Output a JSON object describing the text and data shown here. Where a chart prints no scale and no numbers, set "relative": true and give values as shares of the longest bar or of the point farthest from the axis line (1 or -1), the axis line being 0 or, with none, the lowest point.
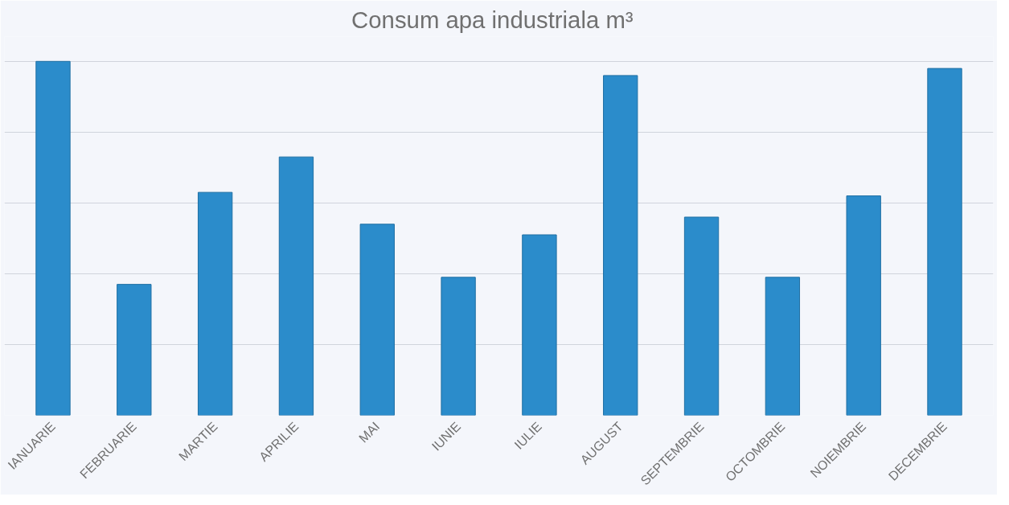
{
  "chart_data": {
    "type": "bar",
    "title": "Consum apa industriala   m³",
    "relative": true,
    "grid": "y",
    "categories": [
      "IANUARIE",
      "FEBRUARIE",
      "MARTIE",
      "APRILIE",
      "MAI",
      "IUNIE",
      "IULIE",
      "AUGUST",
      "SEPTEMBRIE",
      "OCTOMBRIE",
      "NOIEMBRIE",
      "DECEMBRIE"
    ],
    "values": [
      1,
      0.37,
      0.63,
      0.73,
      0.54,
      0.39,
      0.51,
      0.96,
      0.56,
      0.39,
      0.62,
      0.98
    ],
    "color": "#2b8ccb"
  }
}
